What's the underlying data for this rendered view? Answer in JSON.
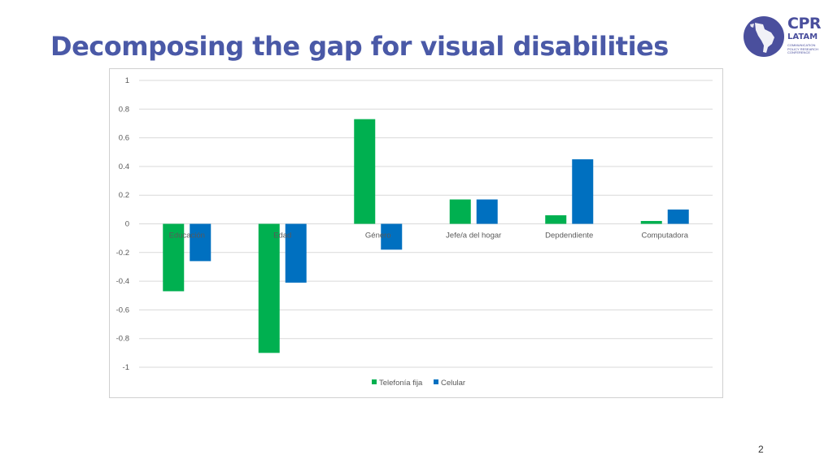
{
  "slide": {
    "title": "Decomposing the gap for visual disabilities",
    "page_number": "2"
  },
  "logo": {
    "line1": "CPR",
    "line2": "LATAM",
    "tagline": "COMMUNICATION POLICY RESEARCH CONFERENCE"
  },
  "chart_data": {
    "type": "bar",
    "title": "",
    "xlabel": "",
    "ylabel": "",
    "categories": [
      "Educación",
      "Edad",
      "Género",
      "Jefe/a del hogar",
      "Depdendiente",
      "Computadora"
    ],
    "series": [
      {
        "name": "Telefonía fija",
        "color": "#00b050",
        "values": [
          -0.47,
          -0.9,
          0.73,
          0.17,
          0.06,
          0.02
        ]
      },
      {
        "name": "Celular",
        "color": "#0070c0",
        "values": [
          -0.26,
          -0.41,
          -0.18,
          0.17,
          0.45,
          0.1
        ]
      }
    ],
    "ylim": [
      -1,
      1
    ],
    "yticks": [
      1,
      0.8,
      0.6,
      0.4,
      0.2,
      0,
      -0.2,
      -0.4,
      -0.6,
      -0.8,
      -1
    ],
    "ytick_labels": [
      "1",
      "0.8",
      "0.6",
      "0.4",
      "0.2",
      "0",
      "-0.2",
      "-0.4",
      "-0.6",
      "-0.8",
      "-1"
    ],
    "grid": true,
    "legend_position": "bottom",
    "colors": {
      "grid": "#d9d9d9",
      "axis_text": "#595959"
    }
  }
}
